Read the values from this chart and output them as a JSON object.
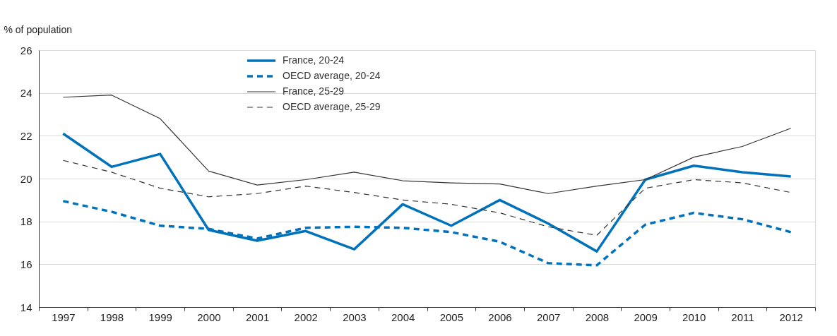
{
  "chart_data": {
    "type": "line",
    "ylabel": "% of population",
    "categories": [
      "1997",
      "1998",
      "1999",
      "2000",
      "2001",
      "2002",
      "2003",
      "2004",
      "2005",
      "2006",
      "2007",
      "2008",
      "2009",
      "2010",
      "2011",
      "2012"
    ],
    "ylim": [
      14,
      26
    ],
    "yticks": [
      14,
      16,
      18,
      20,
      22,
      24,
      26
    ],
    "grid": "y",
    "legend": "top",
    "marker": "none",
    "series": [
      {
        "name": "France, 20-24",
        "color": "#0072bc",
        "line_style": "solid",
        "values": [
          22.1,
          20.55,
          21.15,
          17.6,
          17.1,
          17.55,
          16.7,
          18.8,
          17.8,
          19.0,
          17.9,
          16.6,
          19.95,
          20.6,
          20.3,
          20.1
        ]
      },
      {
        "name": "OECD average, 20-24",
        "color": "#0072bc",
        "line_style": "dashed",
        "values": [
          18.95,
          18.45,
          17.8,
          17.65,
          17.2,
          17.7,
          17.75,
          17.7,
          17.5,
          17.05,
          16.05,
          15.95,
          17.85,
          18.4,
          18.1,
          17.5
        ]
      },
      {
        "name": "France, 25-29",
        "color": "#333333",
        "line_style": "solid",
        "values": [
          23.8,
          23.9,
          22.8,
          20.35,
          19.7,
          19.95,
          20.3,
          19.9,
          19.8,
          19.75,
          19.3,
          19.65,
          19.95,
          21.0,
          21.5,
          22.35
        ]
      },
      {
        "name": "OECD average, 25-29",
        "color": "#333333",
        "line_style": "dashed",
        "values": [
          20.85,
          20.3,
          19.55,
          19.15,
          19.3,
          19.65,
          19.35,
          19.0,
          18.8,
          18.4,
          17.75,
          17.35,
          19.55,
          19.95,
          19.8,
          19.35
        ]
      }
    ]
  }
}
